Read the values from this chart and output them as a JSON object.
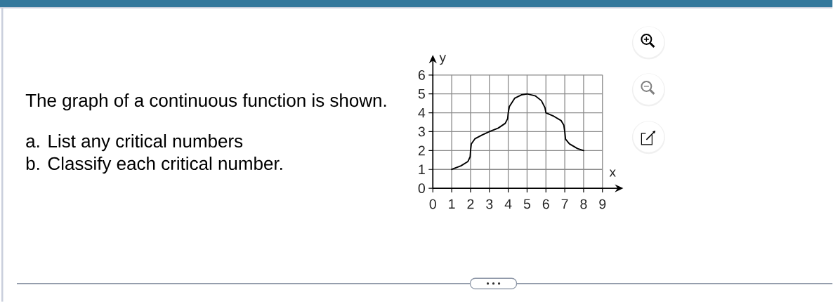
{
  "chart_data": {
    "type": "line",
    "annotations": [
      "The graph of a continuous function is shown.",
      "a. List any critical numbers",
      "b. Classify each critical number."
    ],
    "xlabel": "x",
    "ylabel": "y",
    "series": [
      {
        "color": "#000000",
        "x": [
          1.0,
          1.49,
          1.86,
          1.98,
          2.0,
          2.04,
          2.23,
          2.6,
          3.0,
          3.47,
          3.84,
          3.97,
          4.0,
          4.06,
          4.34,
          4.7,
          5.0,
          5.45,
          5.76,
          5.95,
          6.0,
          6.43,
          6.8,
          6.95,
          7.0,
          7.04,
          7.25,
          7.68,
          8.0
        ],
        "values": [
          1.0,
          1.19,
          1.42,
          1.67,
          2.0,
          2.35,
          2.62,
          2.82,
          3.0,
          3.19,
          3.44,
          3.69,
          4.0,
          4.33,
          4.77,
          4.95,
          5.0,
          4.89,
          4.64,
          4.27,
          4.0,
          3.81,
          3.59,
          3.34,
          3.0,
          2.6,
          2.35,
          2.1,
          2.0
        ]
      }
    ],
    "xlim": [
      0,
      9
    ],
    "ylim": [
      0,
      6
    ],
    "xticks": [
      0,
      1,
      2,
      3,
      4,
      5,
      6,
      7,
      8,
      9
    ],
    "yticks": [
      0,
      1,
      2,
      3,
      4,
      5,
      6
    ],
    "grid": true
  }
}
